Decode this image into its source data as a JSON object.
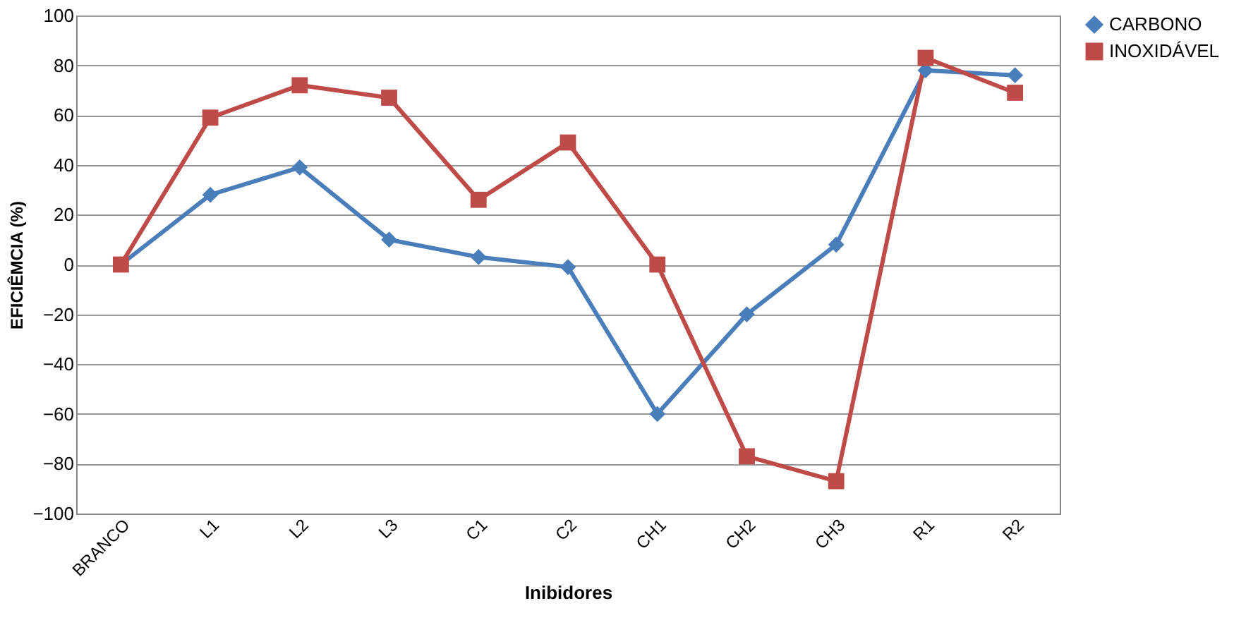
{
  "chart_data": {
    "type": "line",
    "xlabel": "Inibidores",
    "ylabel": "EFICIÊMCIA (%)",
    "categories": [
      "BRANCO",
      "L1",
      "L2",
      "L3",
      "C1",
      "C2",
      "CH1",
      "CH2",
      "CH3",
      "R1",
      "R2"
    ],
    "series": [
      {
        "name": "CARBONO",
        "color": "#4a7ebb",
        "marker": "diamond",
        "values": [
          0,
          28,
          39,
          10,
          3,
          -1,
          -60,
          -20,
          8,
          78,
          76
        ]
      },
      {
        "name": "INOXIDÁVEL",
        "color": "#be4b48",
        "marker": "square",
        "values": [
          0,
          59,
          72,
          67,
          26,
          49,
          0,
          -77,
          -87,
          83,
          69
        ]
      }
    ],
    "ylim": [
      -100,
      100
    ],
    "yticks": [
      -100,
      -80,
      -60,
      -40,
      -20,
      0,
      20,
      40,
      60,
      80,
      100
    ],
    "grid": "y",
    "legend": "right"
  }
}
